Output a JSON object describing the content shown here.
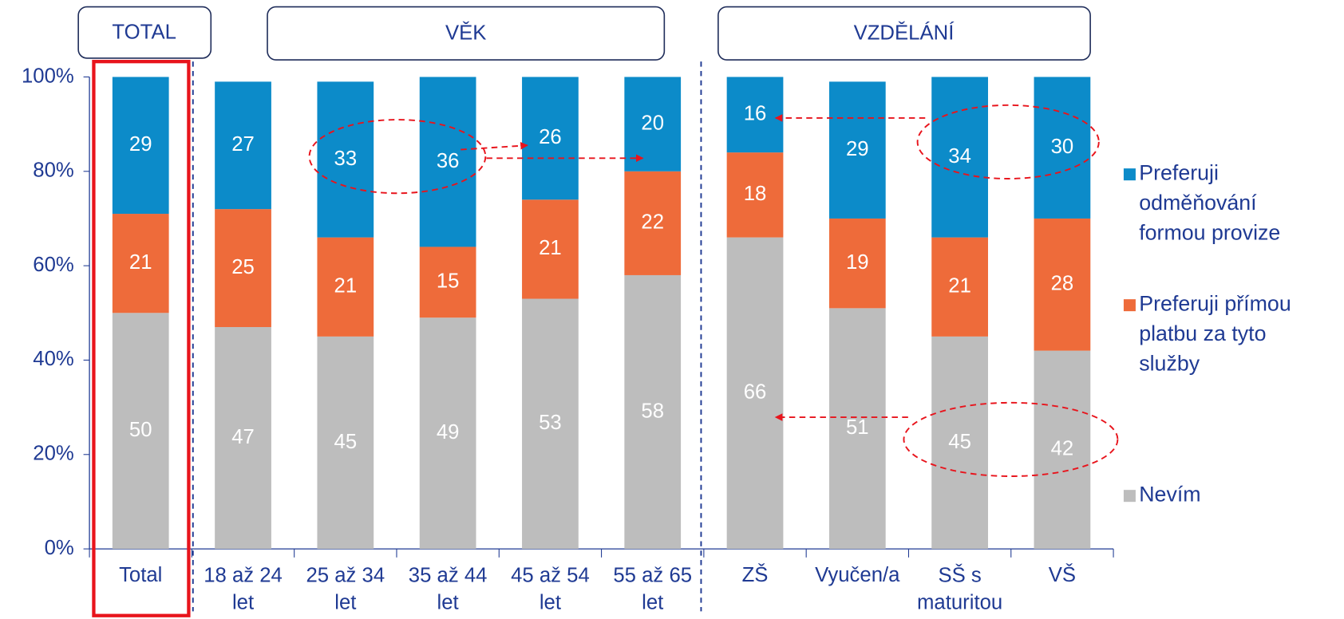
{
  "chart_data": {
    "type": "stacked_bar",
    "group_labels": [
      "TOTAL",
      "VĚK",
      "VZDĚLÁNÍ"
    ],
    "categories": [
      "Total",
      "18 až 24 let",
      "25 až 34 let",
      "35 až 44 let",
      "45 až 54 let",
      "55 až 65 let",
      "ZŠ",
      "Vyučen/a",
      "SŠ s maturitou",
      "VŠ"
    ],
    "series": [
      {
        "name": "Nevím",
        "color": "#bdbdbd",
        "values": [
          50,
          47,
          45,
          49,
          53,
          58,
          66,
          51,
          45,
          42
        ]
      },
      {
        "name": "Preferuji přímou platbu za tyto služby",
        "color": "#ee6b3a",
        "values": [
          21,
          25,
          21,
          15,
          21,
          22,
          18,
          19,
          21,
          28
        ]
      },
      {
        "name": "Preferuji odměňování formou provize",
        "color": "#0c8bc9",
        "values": [
          29,
          27,
          33,
          36,
          26,
          20,
          16,
          29,
          34,
          30
        ]
      }
    ],
    "ylim": [
      0,
      100
    ],
    "yticks": [
      {
        "value": 0,
        "label": "0%"
      },
      {
        "value": 20,
        "label": "20%"
      },
      {
        "value": 40,
        "label": "40%"
      },
      {
        "value": 60,
        "label": "60%"
      },
      {
        "value": 80,
        "label": "80%"
      },
      {
        "value": 100,
        "label": "100%"
      }
    ],
    "legend": "right"
  }
}
